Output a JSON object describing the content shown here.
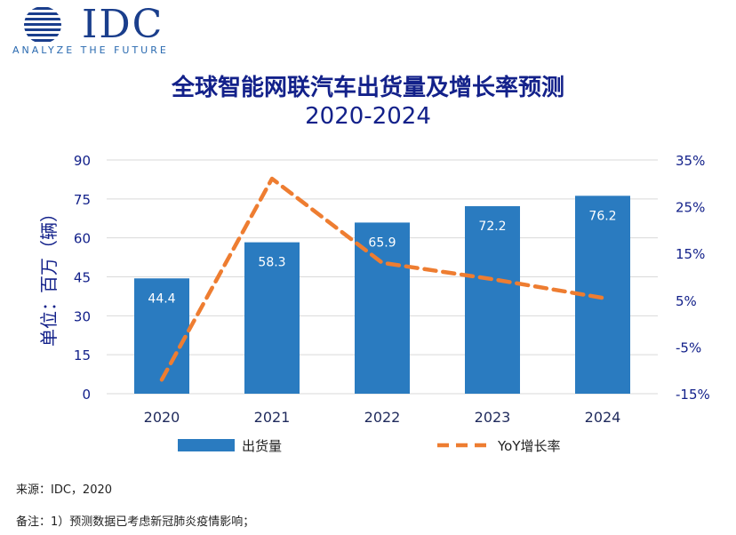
{
  "logo": {
    "name": "IDC",
    "tagline": "ANALYZE THE FUTURE"
  },
  "colors": {
    "bar": "#2a7bc0",
    "line": "#ee7d31",
    "axis": "#13218a",
    "grid": "#d9d9d9"
  },
  "footer": {
    "source": "来源：IDC，2020",
    "note": "备注：1）预测数据已考虑新冠肺炎疫情影响；"
  },
  "chart_data": {
    "type": "bar",
    "title": "全球智能网联汽车出货量及增长率预测",
    "subtitle": "2020-2024",
    "ylabel": "单位：百万（辆）",
    "categories": [
      "2020",
      "2021",
      "2022",
      "2023",
      "2024"
    ],
    "ylim": [
      0,
      90
    ],
    "y_ticks": [
      "0",
      "15",
      "30",
      "45",
      "60",
      "75",
      "90"
    ],
    "y2lim": [
      -15,
      35
    ],
    "y2_ticks": [
      "-15%",
      "-5%",
      "5%",
      "15%",
      "25%",
      "35%"
    ],
    "grid": true,
    "legend_position": "bottom",
    "series": [
      {
        "name": "出货量",
        "type": "bar",
        "axis": "left",
        "values": [
          44.4,
          58.3,
          65.9,
          72.2,
          76.2
        ],
        "labels": [
          "44.4",
          "58.3",
          "65.9",
          "72.2",
          "76.2"
        ]
      },
      {
        "name": "YoY增长率",
        "type": "line",
        "axis": "right",
        "style": "dashed",
        "values": [
          -12,
          31,
          13,
          9.5,
          5.5
        ]
      }
    ]
  }
}
